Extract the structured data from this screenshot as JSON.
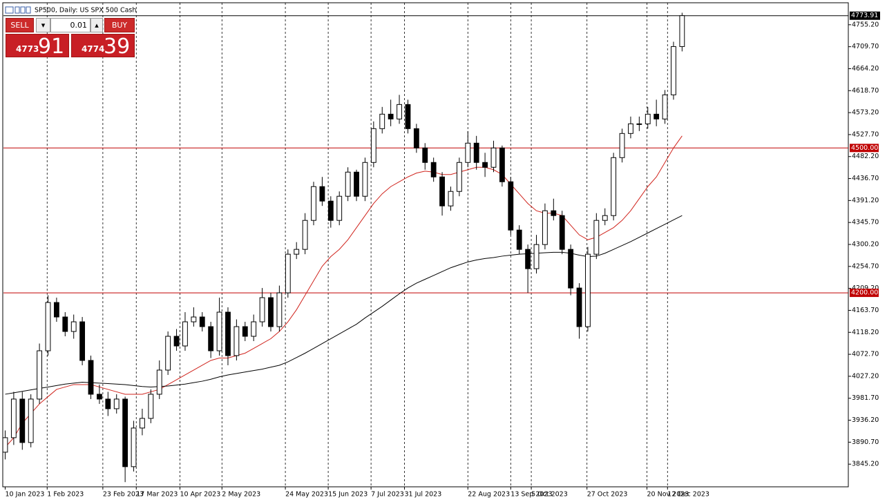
{
  "chart_data": {
    "type": "candlestick",
    "title": "SP500, Daily: US SPX 500 Cash",
    "open": [
      3870,
      3900,
      3980,
      3890,
      3980,
      4080,
      4180,
      4150,
      4120,
      4140,
      4060,
      3990,
      3980,
      3960,
      3980,
      3840,
      3920,
      3940,
      3990,
      4040,
      4110,
      4090,
      4140,
      4150,
      4130,
      4080,
      4160,
      4070,
      4130,
      4110,
      4140,
      4190,
      4130,
      4200,
      4280,
      4290,
      4350,
      4420,
      4390,
      4350,
      4400,
      4450,
      4400,
      4470,
      4540,
      4570,
      4560,
      4590,
      4540,
      4500,
      4470,
      4440,
      4380,
      4410,
      4470,
      4510,
      4470,
      4460,
      4500,
      4430,
      4330,
      4290,
      4250,
      4300,
      4370,
      4360,
      4290,
      4210,
      4130,
      4280,
      4350,
      4360,
      4480,
      4530,
      4550,
      4550,
      4570,
      4560,
      4610,
      4710
    ],
    "high": [
      3915,
      3995,
      3995,
      3990,
      4095,
      4195,
      4190,
      4160,
      4155,
      4150,
      4070,
      4010,
      3995,
      3990,
      3985,
      3935,
      3960,
      4000,
      4060,
      4120,
      4125,
      4160,
      4170,
      4160,
      4140,
      4190,
      4170,
      4145,
      4140,
      4155,
      4210,
      4200,
      4215,
      4290,
      4305,
      4365,
      4430,
      4440,
      4400,
      4410,
      4460,
      4455,
      4480,
      4555,
      4585,
      4600,
      4610,
      4600,
      4550,
      4510,
      4480,
      4450,
      4420,
      4480,
      4535,
      4525,
      4490,
      4515,
      4505,
      4440,
      4340,
      4300,
      4320,
      4385,
      4395,
      4370,
      4300,
      4220,
      4295,
      4365,
      4375,
      4490,
      4540,
      4565,
      4565,
      4585,
      4600,
      4620,
      4720,
      4780
    ],
    "low": [
      3855,
      3885,
      3875,
      3880,
      3970,
      4070,
      4140,
      4110,
      4105,
      4050,
      3980,
      3970,
      3945,
      3950,
      3808,
      3830,
      3905,
      3930,
      3980,
      4030,
      4080,
      4080,
      4130,
      4120,
      4065,
      4070,
      4050,
      4060,
      4100,
      4100,
      4130,
      4120,
      4120,
      4190,
      4270,
      4280,
      4340,
      4380,
      4335,
      4340,
      4390,
      4390,
      4390,
      4460,
      4530,
      4545,
      4550,
      4530,
      4490,
      4455,
      4430,
      4360,
      4370,
      4400,
      4460,
      4455,
      4440,
      4450,
      4420,
      4320,
      4280,
      4200,
      4240,
      4290,
      4350,
      4280,
      4195,
      4105,
      4120,
      4270,
      4340,
      4350,
      4470,
      4520,
      4535,
      4540,
      4545,
      4550,
      4600,
      4700
    ],
    "close": [
      3900,
      3980,
      3890,
      3980,
      4080,
      4180,
      4150,
      4120,
      4140,
      4060,
      3990,
      3980,
      3960,
      3980,
      3840,
      3920,
      3940,
      3990,
      4040,
      4110,
      4090,
      4140,
      4150,
      4130,
      4080,
      4160,
      4070,
      4130,
      4110,
      4140,
      4190,
      4130,
      4200,
      4280,
      4290,
      4350,
      4420,
      4390,
      4350,
      4400,
      4450,
      4400,
      4470,
      4540,
      4570,
      4560,
      4590,
      4540,
      4500,
      4470,
      4440,
      4380,
      4410,
      4470,
      4510,
      4470,
      4460,
      4500,
      4430,
      4330,
      4290,
      4250,
      4300,
      4370,
      4360,
      4290,
      4210,
      4130,
      4280,
      4350,
      4360,
      4480,
      4530,
      4550,
      4550,
      4570,
      4560,
      4610,
      4710,
      4774
    ],
    "lines": [
      {
        "color": "#d0231c",
        "values": [
          3880,
          3900,
          3930,
          3950,
          3970,
          3985,
          4000,
          4005,
          4010,
          4010,
          4010,
          4005,
          4000,
          3995,
          3990,
          3990,
          3990,
          3995,
          4000,
          4010,
          4020,
          4030,
          4040,
          4050,
          4060,
          4065,
          4065,
          4070,
          4075,
          4085,
          4095,
          4105,
          4120,
          4140,
          4165,
          4195,
          4225,
          4255,
          4275,
          4290,
          4310,
          4335,
          4360,
          4385,
          4405,
          4420,
          4430,
          4440,
          4448,
          4452,
          4450,
          4445,
          4445,
          4450,
          4455,
          4460,
          4460,
          4455,
          4445,
          4425,
          4405,
          4385,
          4370,
          4365,
          4365,
          4360,
          4340,
          4320,
          4310,
          4315,
          4325,
          4335,
          4350,
          4370,
          4395,
          4420,
          4440,
          4470,
          4500,
          4525
        ]
      },
      {
        "color": "#000000",
        "values": [
          3990,
          3993,
          3996,
          3999,
          4002,
          4005,
          4008,
          4011,
          4013,
          4015,
          4014,
          4013,
          4012,
          4011,
          4010,
          4008,
          4006,
          4005,
          4006,
          4007,
          4009,
          4011,
          4014,
          4017,
          4021,
          4026,
          4030,
          4033,
          4036,
          4039,
          4042,
          4046,
          4050,
          4057,
          4066,
          4075,
          4085,
          4095,
          4105,
          4115,
          4125,
          4135,
          4148,
          4160,
          4172,
          4185,
          4198,
          4210,
          4220,
          4228,
          4236,
          4244,
          4252,
          4258,
          4264,
          4268,
          4271,
          4273,
          4276,
          4278,
          4280,
          4281,
          4282,
          4283,
          4284,
          4284,
          4282,
          4278,
          4275,
          4276,
          4282,
          4290,
          4298,
          4306,
          4315,
          4324,
          4333,
          4342,
          4351,
          4360
        ]
      }
    ],
    "levels": [
      {
        "value": 4500,
        "label": "4500.00",
        "color": "#c00000"
      },
      {
        "value": 4200,
        "label": "4200.00",
        "color": "#c00000"
      }
    ],
    "last_price": 4773.91,
    "xlim": [
      -0.2,
      98.4
    ],
    "ylim": [
      3798.3,
      4800.7
    ],
    "yticks": [
      {
        "value": 4755.2,
        "label": "4755.20"
      },
      {
        "value": 4709.7,
        "label": "4709.70"
      },
      {
        "value": 4664.2,
        "label": "4664.20"
      },
      {
        "value": 4618.7,
        "label": "4618.70"
      },
      {
        "value": 4573.2,
        "label": "4573.20"
      },
      {
        "value": 4527.7,
        "label": "4527.70"
      },
      {
        "value": 4482.2,
        "label": "4482.20"
      },
      {
        "value": 4436.7,
        "label": "4436.70"
      },
      {
        "value": 4391.2,
        "label": "4391.20"
      },
      {
        "value": 4345.7,
        "label": "4345.70"
      },
      {
        "value": 4300.2,
        "label": "4300.20"
      },
      {
        "value": 4254.7,
        "label": "4254.70"
      },
      {
        "value": 4209.2,
        "label": "4209.20"
      },
      {
        "value": 4163.7,
        "label": "4163.70"
      },
      {
        "value": 4118.2,
        "label": "4118.20"
      },
      {
        "value": 4072.7,
        "label": "4072.70"
      },
      {
        "value": 4027.2,
        "label": "4027.20"
      },
      {
        "value": 3981.7,
        "label": "3981.70"
      },
      {
        "value": 3936.2,
        "label": "3936.20"
      },
      {
        "value": 3890.7,
        "label": "3890.70"
      },
      {
        "value": 3845.2,
        "label": "3845.20"
      }
    ],
    "xticks": [
      {
        "value": 0,
        "label": "10 Jan 2023"
      },
      {
        "value": 4.9,
        "label": "1 Feb 2023"
      },
      {
        "value": 11.4,
        "label": "23 Feb 2023"
      },
      {
        "value": 15.3,
        "label": "17 Mar 2023"
      },
      {
        "value": 20.4,
        "label": "10 Apr 2023"
      },
      {
        "value": 25.3,
        "label": "2 May 2023"
      },
      {
        "value": 32.7,
        "label": "24 May 2023"
      },
      {
        "value": 37.7,
        "label": "15 Jun 2023"
      },
      {
        "value": 42.7,
        "label": "7 Jul 2023"
      },
      {
        "value": 46.6,
        "label": "31 Jul 2023"
      },
      {
        "value": 54,
        "label": "22 Aug 2023"
      },
      {
        "value": 59,
        "label": "13 Sep 2023"
      },
      {
        "value": 61.4,
        "label": "5 Oct 2023"
      },
      {
        "value": 67.9,
        "label": "27 Oct 2023"
      },
      {
        "value": 74.9,
        "label": "20 Nov 2023"
      },
      {
        "value": 77.3,
        "label": "12 Dec 2023"
      }
    ],
    "up_color": "#ffffff",
    "down_color": "#000000"
  },
  "trade_panel": {
    "sell": "SELL",
    "buy": "BUY",
    "volume": "0.01",
    "bid_prefix": "4773",
    "bid_pips": "91",
    "ask_prefix": "4774",
    "ask_pips": "39"
  }
}
